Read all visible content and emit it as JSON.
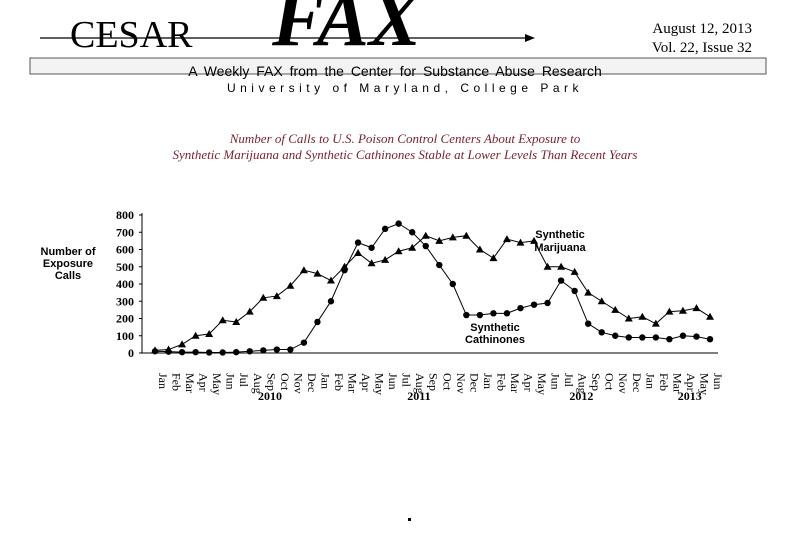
{
  "header": {
    "brand": "CESAR",
    "logo": "FAX",
    "date": "August 12, 2013",
    "issue": "Vol. 22, Issue 32",
    "tagline": "A Weekly FAX from the Center for Substance Abuse Research",
    "affiliation": "University of Maryland, College Park"
  },
  "chart_data": {
    "type": "line",
    "title": [
      "Number of Calls to U.S. Poison Control Centers About Exposure to",
      "Synthetic Marijuana and Synthetic Cathinones Stable at Lower Levels Than Recent Years"
    ],
    "y_label": [
      "Number of",
      "Exposure",
      "Calls"
    ],
    "categories": [
      "Jan",
      "Feb",
      "Mar",
      "Apr",
      "May",
      "Jun",
      "Jul",
      "Aug",
      "Sep",
      "Oct",
      "Nov",
      "Dec",
      "Jan",
      "Feb",
      "Mar",
      "Apr",
      "May",
      "Jun",
      "Jul",
      "Aug",
      "Sep",
      "Oct",
      "Nov",
      "Dec",
      "Jan",
      "Feb",
      "Mar",
      "Apr",
      "May",
      "Jun",
      "Jul",
      "Aug",
      "Sep",
      "Oct",
      "Nov",
      "Dec",
      "Jan",
      "Feb",
      "Mar",
      "Apr",
      "May",
      "Jun"
    ],
    "years": [
      "2010",
      "2011",
      "2012",
      "2013"
    ],
    "ylim": [
      0,
      800
    ],
    "yticks": [
      0,
      100,
      200,
      300,
      400,
      500,
      600,
      700,
      800
    ],
    "series": [
      {
        "name": [
          "Synthetic",
          "Marijuana"
        ],
        "color": "#000000",
        "marker": "triangle",
        "values": [
          15,
          20,
          50,
          100,
          110,
          190,
          180,
          240,
          320,
          330,
          390,
          480,
          460,
          420,
          500,
          580,
          520,
          540,
          590,
          610,
          680,
          650,
          670,
          680,
          600,
          550,
          660,
          640,
          650,
          500,
          500,
          470,
          350,
          300,
          250,
          200,
          210,
          170,
          240,
          245,
          260,
          210
        ]
      },
      {
        "name": [
          "Synthetic",
          "Cathinones"
        ],
        "color": "#000000",
        "marker": "circle",
        "values": [
          10,
          8,
          5,
          5,
          3,
          3,
          5,
          10,
          15,
          20,
          20,
          60,
          180,
          300,
          480,
          640,
          610,
          720,
          750,
          700,
          620,
          510,
          400,
          220,
          220,
          230,
          230,
          260,
          280,
          290,
          420,
          360,
          170,
          120,
          100,
          90,
          90,
          90,
          80,
          100,
          95,
          80
        ]
      }
    ]
  }
}
